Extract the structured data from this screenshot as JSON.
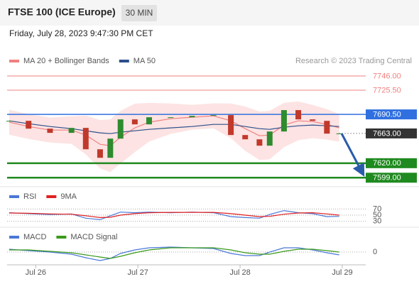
{
  "header": {
    "title": "FTSE 100 (ICE Europe)",
    "timeframe": "30 MIN",
    "datetime": "Friday, July 28, 2023 9:47:30 PM CET",
    "source": "Research © 2023 Trading Central"
  },
  "chart_data": [
    {
      "type": "candlestick",
      "legend": "top-left",
      "xlim": [
        -0.28,
        3.23
      ],
      "ylim": [
        7587,
        7784
      ],
      "x": [
        -0.26,
        -0.07,
        0.14,
        0.35,
        0.49,
        0.63,
        0.73,
        0.83,
        0.97,
        1.11,
        1.32,
        1.53,
        1.74,
        1.91,
        2.05,
        2.19,
        2.29,
        2.43,
        2.57,
        2.71,
        2.85,
        2.97
      ],
      "close": [
        7681.2,
        7669.9,
        7663.8,
        7671.0,
        7640.1,
        7627.8,
        7655.5,
        7683.3,
        7676.1,
        7686.4,
        7686.4,
        7688.4,
        7689.5,
        7660.7,
        7654.5,
        7645.3,
        7665.8,
        7696.7,
        7683.3,
        7681.2,
        7662.7,
        7663.0
      ],
      "up_color": "#2e8b2e",
      "down_color": "#c0392b",
      "series": [
        {
          "name": "MA 20 + Bollinger Bands",
          "color": "#f08080",
          "band_color": "#fde3e3",
          "values": [
            7679.2,
            7673.0,
            7667.9,
            7667.9,
            7660.7,
            7647.3,
            7645.3,
            7657.6,
            7671.0,
            7679.2,
            7684.3,
            7686.4,
            7688.4,
            7681.2,
            7669.9,
            7659.6,
            7660.7,
            7675.1,
            7681.2,
            7680.2,
            7676.1,
            7671.0
          ],
          "upper": [
            7697.2,
            7691.0,
            7685.9,
            7687.9,
            7688.7,
            7682.3,
            7683.3,
            7695.6,
            7706.0,
            7707.2,
            7706.3,
            7704.4,
            7706.4,
            7706.2,
            7701.9,
            7694.6,
            7695.7,
            7707.1,
            7709.2,
            7704.2,
            7698.1,
            7691.0
          ],
          "lower": [
            7661.2,
            7655.0,
            7649.9,
            7647.9,
            7632.7,
            7612.3,
            7607.3,
            7619.6,
            7636.0,
            7651.2,
            7662.3,
            7668.4,
            7670.4,
            7656.2,
            7637.9,
            7624.6,
            7625.7,
            7643.1,
            7653.2,
            7656.2,
            7654.1,
            7651.0
          ]
        },
        {
          "name": "MA 50",
          "color": "#2c4f8c",
          "values": [
            7681.2,
            7677.1,
            7673.0,
            7669.9,
            7666.8,
            7663.8,
            7662.7,
            7664.8,
            7666.8,
            7668.9,
            7671.0,
            7673.0,
            7676.1,
            7676.1,
            7673.0,
            7669.9,
            7668.9,
            7672.0,
            7674.0,
            7675.1,
            7674.0,
            7673.0
          ]
        }
      ],
      "levels": [
        {
          "value": 7746,
          "label": "7746.00",
          "color": "#f08080",
          "boxed": false,
          "width": 1
        },
        {
          "value": 7725.5,
          "label": "7725.50",
          "color": "#f08080",
          "boxed": false,
          "width": 1
        },
        {
          "value": 7690.5,
          "label": "7690.50",
          "color": "#2f6fe0",
          "boxed": true,
          "width": 1.5
        },
        {
          "value": 7663,
          "label": "7663.00",
          "color": "#333333",
          "boxed": true,
          "width": 1,
          "dotted": true
        },
        {
          "value": 7620,
          "label": "7620.00",
          "color": "#1f8a1f",
          "boxed": true,
          "width": 2.5
        },
        {
          "value": 7599,
          "label": "7599.00",
          "color": "#1f8a1f",
          "boxed": true,
          "width": 2.5
        }
      ]
    },
    {
      "type": "line",
      "legend": "top-left",
      "ylim": [
        15,
        92
      ],
      "yticks": [
        30,
        50,
        70
      ],
      "series": [
        {
          "name": "RSI",
          "color": "#4a78d8",
          "values": [
            58,
            55,
            52,
            54,
            40,
            35,
            48,
            60,
            58,
            60,
            58,
            60,
            58,
            45,
            42,
            40,
            52,
            65,
            58,
            55,
            45,
            46
          ]
        },
        {
          "name": "9MA",
          "color": "#e02020",
          "values": [
            57,
            56,
            54,
            53,
            48,
            42,
            43,
            50,
            55,
            58,
            59,
            59,
            59,
            55,
            50,
            45,
            46,
            53,
            57,
            58,
            54,
            50
          ]
        }
      ]
    },
    {
      "type": "line",
      "legend": "top-left",
      "ylim": [
        -15,
        15
      ],
      "yticks": [
        0
      ],
      "xticks": [
        {
          "value": 0,
          "label": "Jul 26"
        },
        {
          "value": 1,
          "label": "Jul 27"
        },
        {
          "value": 2,
          "label": "Jul 28"
        },
        {
          "value": 3,
          "label": "Jul 29"
        }
      ],
      "series": [
        {
          "name": "MACD",
          "color": "#4a78d8",
          "values": [
            4,
            2,
            0,
            -3,
            -8,
            -12,
            -9,
            -2,
            3,
            6,
            7,
            6,
            5,
            -2,
            -5,
            -5,
            0,
            6,
            6,
            3,
            -1,
            -4
          ]
        },
        {
          "name": "MACD Signal",
          "color": "#3a9a1a",
          "values": [
            3,
            3,
            1,
            -1,
            -4,
            -7,
            -9,
            -6,
            -1,
            3,
            6,
            6,
            6,
            3,
            -1,
            -3,
            -3,
            1,
            4,
            4,
            2,
            0
          ]
        }
      ]
    }
  ]
}
